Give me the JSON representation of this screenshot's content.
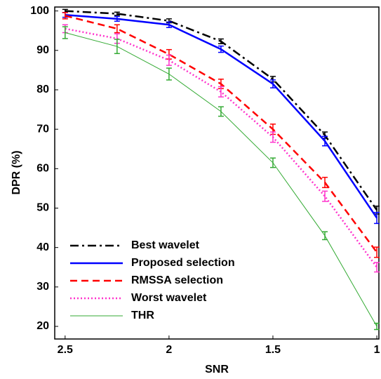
{
  "chart_data": {
    "type": "line",
    "x_label": "SNR",
    "y_label": "DPR (%)",
    "x": [
      2.5,
      2.25,
      2,
      1.75,
      1.5,
      1.25,
      1
    ],
    "xlim": [
      2.55,
      0.99
    ],
    "ylim": [
      16.8,
      101
    ],
    "xticks": [
      2.5,
      2,
      1.5,
      1
    ],
    "yticks": [
      20,
      30,
      40,
      50,
      60,
      70,
      80,
      90,
      100
    ],
    "legend": "lower left",
    "series": [
      {
        "name": "Best wavelet",
        "color": "#000000",
        "style": "dashdot",
        "width": 2.5,
        "values": [
          100,
          99.3,
          97.5,
          92.3,
          82.7,
          68.5,
          49.5
        ],
        "errors": [
          0.4,
          0.4,
          0.5,
          0.6,
          0.7,
          0.8,
          1
        ]
      },
      {
        "name": "Proposed selection",
        "color": "#0000ff",
        "style": "solid",
        "width": 2.5,
        "values": [
          99,
          98,
          96.5,
          90.3,
          81.5,
          67,
          47.5
        ],
        "errors": [
          0.6,
          0.6,
          0.7,
          0.8,
          1,
          1.2,
          1.4
        ]
      },
      {
        "name": "RMSSA selection",
        "color": "#ff0000",
        "style": "dashed",
        "width": 2.5,
        "values": [
          98.8,
          95.5,
          89,
          81.5,
          70,
          56.5,
          38.8
        ],
        "errors": [
          0.8,
          1,
          1.2,
          1.2,
          1.3,
          1.3,
          1.3
        ]
      },
      {
        "name": "Worst wavelet",
        "color": "#ff33cc",
        "style": "dotted",
        "width": 2.5,
        "values": [
          95.5,
          93,
          87.5,
          79.5,
          68,
          53,
          35
        ],
        "errors": [
          1,
          1.2,
          1.3,
          1.3,
          1.3,
          1.3,
          1.2
        ]
      },
      {
        "name": "THR",
        "color": "#33aa33",
        "style": "solid",
        "width": 1,
        "values": [
          94.5,
          91,
          84,
          74.5,
          61.5,
          43,
          20
        ],
        "errors": [
          1.5,
          1.8,
          1.5,
          1.2,
          1.2,
          1,
          0.8
        ]
      }
    ]
  }
}
